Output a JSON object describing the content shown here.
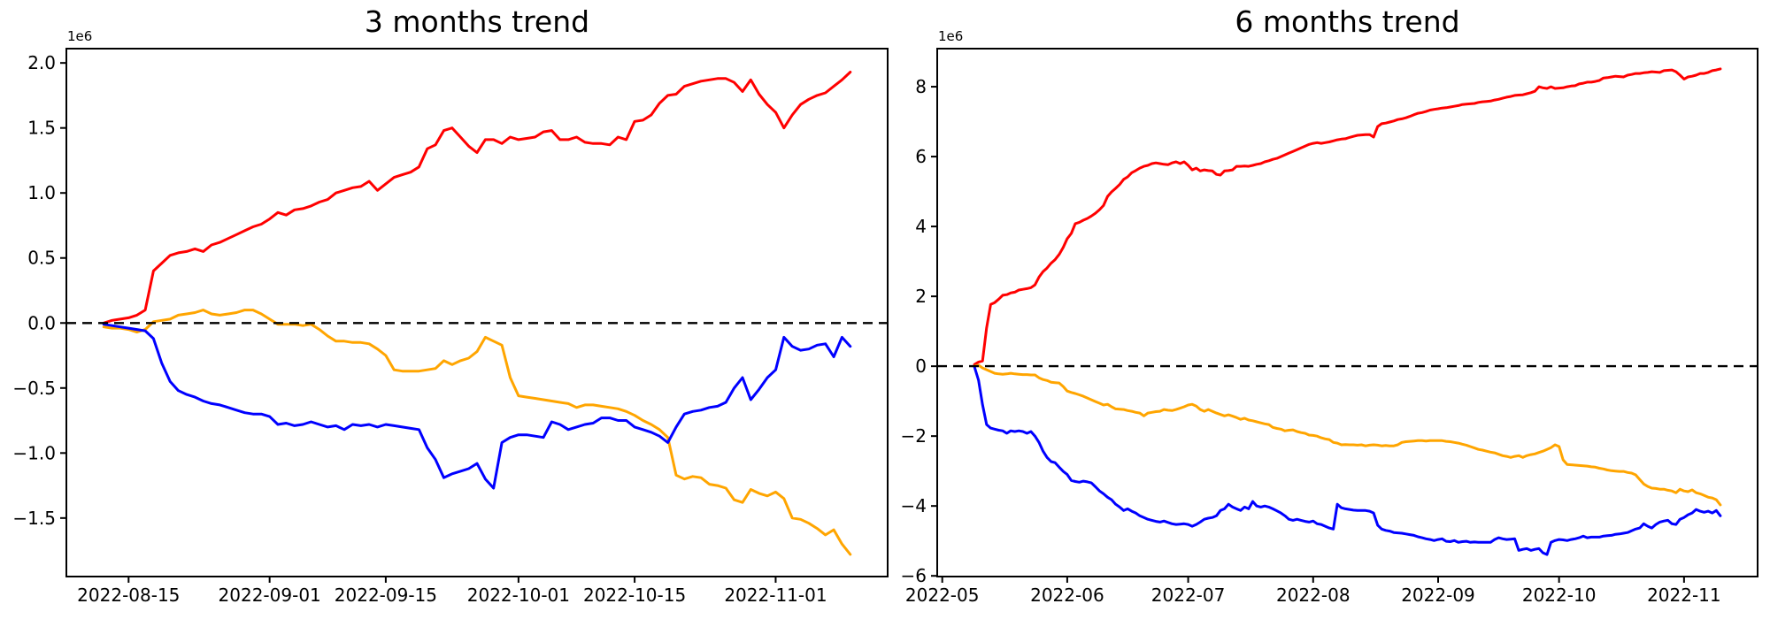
{
  "figure": {
    "background": "#ffffff",
    "axis_color": "#000000",
    "zero_line_color": "#000000"
  },
  "chart_data": [
    {
      "type": "line",
      "title": "3 months trend",
      "offset_text": "1e6",
      "xlabel": "",
      "ylabel": "",
      "grid": false,
      "legend": "none",
      "zero_line": true,
      "start_date": "2022-08-12",
      "end_date": "2022-11-10",
      "xlim": [
        -4.5,
        94.5
      ],
      "ylim": [
        -1.95,
        2.11
      ],
      "xticks": [
        {
          "day": 3,
          "label": "2022-08-15"
        },
        {
          "day": 20,
          "label": "2022-09-01"
        },
        {
          "day": 34,
          "label": "2022-09-15"
        },
        {
          "day": 50,
          "label": "2022-10-01"
        },
        {
          "day": 64,
          "label": "2022-10-15"
        },
        {
          "day": 81,
          "label": "2022-11-01"
        }
      ],
      "yticks": [
        {
          "value": -1.5,
          "label": "−1.5"
        },
        {
          "value": -1.0,
          "label": "−1.0"
        },
        {
          "value": -0.5,
          "label": "−0.5"
        },
        {
          "value": 0.0,
          "label": "0.0"
        },
        {
          "value": 0.5,
          "label": "0.5"
        },
        {
          "value": 1.0,
          "label": "1.0"
        },
        {
          "value": 1.5,
          "label": "1.5"
        },
        {
          "value": 2.0,
          "label": "2.0"
        }
      ],
      "y_unit_multiplier": 1000000,
      "series": [
        {
          "name": "red-series",
          "color": "#ff0000",
          "values": [
            0.0,
            0.02,
            0.03,
            0.04,
            0.06,
            0.1,
            0.4,
            0.46,
            0.52,
            0.54,
            0.55,
            0.57,
            0.55,
            0.6,
            0.62,
            0.65,
            0.68,
            0.71,
            0.74,
            0.76,
            0.8,
            0.85,
            0.83,
            0.87,
            0.88,
            0.9,
            0.93,
            0.95,
            1.0,
            1.02,
            1.04,
            1.05,
            1.09,
            1.02,
            1.07,
            1.12,
            1.14,
            1.16,
            1.2,
            1.34,
            1.37,
            1.48,
            1.5,
            1.43,
            1.36,
            1.31,
            1.41,
            1.41,
            1.38,
            1.43,
            1.41,
            1.42,
            1.43,
            1.47,
            1.48,
            1.41,
            1.41,
            1.43,
            1.39,
            1.38,
            1.38,
            1.37,
            1.43,
            1.41,
            1.55,
            1.56,
            1.6,
            1.69,
            1.75,
            1.76,
            1.82,
            1.84,
            1.86,
            1.87,
            1.88,
            1.88,
            1.85,
            1.78,
            1.87,
            1.76,
            1.68,
            1.62,
            1.5,
            1.6,
            1.68,
            1.72,
            1.75,
            1.77,
            1.82,
            1.87,
            1.93
          ]
        },
        {
          "name": "orange-series",
          "color": "#ffa500",
          "values": [
            -0.03,
            -0.04,
            -0.04,
            -0.05,
            -0.07,
            -0.05,
            0.01,
            0.02,
            0.03,
            0.06,
            0.07,
            0.08,
            0.1,
            0.07,
            0.06,
            0.07,
            0.08,
            0.1,
            0.1,
            0.07,
            0.03,
            -0.01,
            -0.01,
            -0.01,
            -0.02,
            -0.01,
            -0.05,
            -0.1,
            -0.14,
            -0.14,
            -0.15,
            -0.15,
            -0.16,
            -0.2,
            -0.25,
            -0.36,
            -0.37,
            -0.37,
            -0.37,
            -0.36,
            -0.35,
            -0.29,
            -0.32,
            -0.29,
            -0.27,
            -0.22,
            -0.11,
            -0.14,
            -0.17,
            -0.42,
            -0.56,
            -0.57,
            -0.58,
            -0.59,
            -0.6,
            -0.61,
            -0.62,
            -0.65,
            -0.63,
            -0.63,
            -0.64,
            -0.65,
            -0.66,
            -0.68,
            -0.71,
            -0.75,
            -0.78,
            -0.82,
            -0.88,
            -1.17,
            -1.2,
            -1.18,
            -1.19,
            -1.24,
            -1.25,
            -1.27,
            -1.36,
            -1.38,
            -1.28,
            -1.31,
            -1.33,
            -1.3,
            -1.35,
            -1.5,
            -1.51,
            -1.54,
            -1.58,
            -1.63,
            -1.59,
            -1.7,
            -1.78
          ]
        },
        {
          "name": "blue-series",
          "color": "#0000ff",
          "values": [
            -0.01,
            -0.02,
            -0.03,
            -0.04,
            -0.05,
            -0.06,
            -0.12,
            -0.31,
            -0.45,
            -0.52,
            -0.55,
            -0.57,
            -0.6,
            -0.62,
            -0.63,
            -0.65,
            -0.67,
            -0.69,
            -0.7,
            -0.7,
            -0.72,
            -0.78,
            -0.77,
            -0.79,
            -0.78,
            -0.76,
            -0.78,
            -0.8,
            -0.79,
            -0.82,
            -0.78,
            -0.79,
            -0.78,
            -0.8,
            -0.78,
            -0.79,
            -0.8,
            -0.81,
            -0.82,
            -0.96,
            -1.05,
            -1.19,
            -1.16,
            -1.14,
            -1.12,
            -1.08,
            -1.2,
            -1.27,
            -0.92,
            -0.88,
            -0.86,
            -0.86,
            -0.87,
            -0.88,
            -0.76,
            -0.78,
            -0.82,
            -0.8,
            -0.78,
            -0.77,
            -0.73,
            -0.73,
            -0.75,
            -0.75,
            -0.8,
            -0.82,
            -0.84,
            -0.87,
            -0.92,
            -0.8,
            -0.7,
            -0.68,
            -0.67,
            -0.65,
            -0.64,
            -0.61,
            -0.5,
            -0.42,
            -0.59,
            -0.51,
            -0.42,
            -0.36,
            -0.11,
            -0.18,
            -0.21,
            -0.2,
            -0.17,
            -0.16,
            -0.26,
            -0.11,
            -0.18
          ]
        }
      ]
    },
    {
      "type": "line",
      "title": "6 months trend",
      "offset_text": "1e6",
      "xlabel": "",
      "ylabel": "",
      "grid": false,
      "legend": "none",
      "zero_line": true,
      "start_date": "2022-05-09",
      "end_date": "2022-11-10",
      "xlim": [
        -9.25,
        194.25
      ],
      "ylim": [
        -6.02,
        9.09
      ],
      "xticks": [
        {
          "day": -8,
          "label": "2022-05"
        },
        {
          "day": 23,
          "label": "2022-06"
        },
        {
          "day": 53,
          "label": "2022-07"
        },
        {
          "day": 84,
          "label": "2022-08"
        },
        {
          "day": 115,
          "label": "2022-09"
        },
        {
          "day": 145,
          "label": "2022-10"
        },
        {
          "day": 176,
          "label": "2022-11"
        }
      ],
      "yticks": [
        {
          "value": -6,
          "label": "−6"
        },
        {
          "value": -4,
          "label": "−4"
        },
        {
          "value": -2,
          "label": "−2"
        },
        {
          "value": 0,
          "label": "0"
        },
        {
          "value": 2,
          "label": "2"
        },
        {
          "value": 4,
          "label": "4"
        },
        {
          "value": 6,
          "label": "6"
        },
        {
          "value": 8,
          "label": "8"
        }
      ],
      "y_unit_multiplier": 1000000,
      "series": [
        {
          "name": "red-series",
          "color": "#ff0000",
          "values": [
            0.05,
            0.12,
            0.15,
            1.1,
            1.77,
            1.82,
            1.92,
            2.03,
            2.05,
            2.1,
            2.12,
            2.18,
            2.2,
            2.22,
            2.25,
            2.33,
            2.55,
            2.71,
            2.81,
            2.95,
            3.05,
            3.2,
            3.4,
            3.65,
            3.8,
            4.08,
            4.12,
            4.18,
            4.23,
            4.3,
            4.38,
            4.48,
            4.6,
            4.86,
            4.99,
            5.09,
            5.2,
            5.35,
            5.42,
            5.54,
            5.6,
            5.67,
            5.72,
            5.75,
            5.8,
            5.82,
            5.8,
            5.78,
            5.77,
            5.82,
            5.85,
            5.8,
            5.85,
            5.75,
            5.62,
            5.67,
            5.59,
            5.62,
            5.6,
            5.59,
            5.49,
            5.47,
            5.59,
            5.6,
            5.62,
            5.72,
            5.72,
            5.73,
            5.72,
            5.75,
            5.78,
            5.8,
            5.85,
            5.88,
            5.92,
            5.95,
            6.0,
            6.05,
            6.1,
            6.15,
            6.2,
            6.25,
            6.3,
            6.35,
            6.38,
            6.4,
            6.38,
            6.4,
            6.42,
            6.45,
            6.48,
            6.5,
            6.51,
            6.55,
            6.58,
            6.61,
            6.62,
            6.63,
            6.63,
            6.56,
            6.86,
            6.94,
            6.96,
            6.99,
            7.02,
            7.06,
            7.08,
            7.11,
            7.15,
            7.2,
            7.24,
            7.26,
            7.29,
            7.33,
            7.35,
            7.37,
            7.39,
            7.4,
            7.42,
            7.44,
            7.46,
            7.49,
            7.5,
            7.51,
            7.52,
            7.55,
            7.57,
            7.58,
            7.59,
            7.62,
            7.64,
            7.67,
            7.7,
            7.72,
            7.75,
            7.76,
            7.77,
            7.8,
            7.83,
            7.87,
            8.0,
            7.97,
            7.95,
            8.0,
            7.95,
            7.96,
            7.97,
            8.0,
            8.02,
            8.03,
            8.08,
            8.1,
            8.13,
            8.13,
            8.15,
            8.18,
            8.25,
            8.26,
            8.28,
            8.3,
            8.29,
            8.28,
            8.33,
            8.35,
            8.38,
            8.38,
            8.4,
            8.41,
            8.43,
            8.42,
            8.41,
            8.46,
            8.47,
            8.48,
            8.43,
            8.33,
            8.22,
            8.28,
            8.3,
            8.33,
            8.38,
            8.38,
            8.41,
            8.46,
            8.48,
            8.51
          ]
        },
        {
          "name": "orange-series",
          "color": "#ffa500",
          "values": [
            0.0,
            0.03,
            -0.05,
            -0.1,
            -0.15,
            -0.2,
            -0.22,
            -0.23,
            -0.22,
            -0.2,
            -0.22,
            -0.23,
            -0.24,
            -0.24,
            -0.25,
            -0.25,
            -0.33,
            -0.38,
            -0.41,
            -0.46,
            -0.47,
            -0.48,
            -0.58,
            -0.71,
            -0.75,
            -0.78,
            -0.82,
            -0.86,
            -0.91,
            -0.96,
            -1.01,
            -1.06,
            -1.11,
            -1.09,
            -1.16,
            -1.22,
            -1.23,
            -1.24,
            -1.27,
            -1.29,
            -1.32,
            -1.34,
            -1.42,
            -1.34,
            -1.32,
            -1.3,
            -1.29,
            -1.24,
            -1.26,
            -1.27,
            -1.24,
            -1.2,
            -1.16,
            -1.11,
            -1.09,
            -1.14,
            -1.24,
            -1.29,
            -1.24,
            -1.29,
            -1.34,
            -1.38,
            -1.42,
            -1.39,
            -1.43,
            -1.47,
            -1.52,
            -1.49,
            -1.54,
            -1.56,
            -1.59,
            -1.62,
            -1.65,
            -1.67,
            -1.75,
            -1.78,
            -1.8,
            -1.85,
            -1.83,
            -1.82,
            -1.87,
            -1.9,
            -1.92,
            -1.97,
            -1.98,
            -2.0,
            -2.05,
            -2.08,
            -2.1,
            -2.18,
            -2.2,
            -2.25,
            -2.24,
            -2.25,
            -2.25,
            -2.26,
            -2.25,
            -2.28,
            -2.26,
            -2.25,
            -2.26,
            -2.28,
            -2.27,
            -2.28,
            -2.28,
            -2.25,
            -2.18,
            -2.16,
            -2.15,
            -2.14,
            -2.13,
            -2.13,
            -2.14,
            -2.13,
            -2.13,
            -2.13,
            -2.13,
            -2.15,
            -2.16,
            -2.18,
            -2.2,
            -2.23,
            -2.26,
            -2.3,
            -2.34,
            -2.38,
            -2.4,
            -2.43,
            -2.46,
            -2.48,
            -2.52,
            -2.56,
            -2.58,
            -2.61,
            -2.58,
            -2.56,
            -2.61,
            -2.56,
            -2.53,
            -2.51,
            -2.47,
            -2.43,
            -2.38,
            -2.33,
            -2.25,
            -2.3,
            -2.68,
            -2.81,
            -2.82,
            -2.83,
            -2.84,
            -2.85,
            -2.86,
            -2.88,
            -2.89,
            -2.92,
            -2.94,
            -2.97,
            -2.99,
            -3.0,
            -3.01,
            -3.01,
            -3.04,
            -3.06,
            -3.11,
            -3.24,
            -3.37,
            -3.44,
            -3.49,
            -3.5,
            -3.52,
            -3.52,
            -3.55,
            -3.57,
            -3.62,
            -3.52,
            -3.57,
            -3.59,
            -3.54,
            -3.62,
            -3.65,
            -3.7,
            -3.75,
            -3.77,
            -3.82,
            -3.97
          ]
        },
        {
          "name": "blue-series",
          "color": "#0000ff",
          "values": [
            -0.02,
            -0.4,
            -1.1,
            -1.67,
            -1.77,
            -1.8,
            -1.83,
            -1.85,
            -1.92,
            -1.85,
            -1.87,
            -1.85,
            -1.87,
            -1.92,
            -1.87,
            -2.0,
            -2.18,
            -2.43,
            -2.61,
            -2.73,
            -2.76,
            -2.89,
            -3.01,
            -3.1,
            -3.27,
            -3.3,
            -3.32,
            -3.29,
            -3.31,
            -3.34,
            -3.45,
            -3.57,
            -3.65,
            -3.75,
            -3.82,
            -3.95,
            -4.03,
            -4.13,
            -4.08,
            -4.15,
            -4.2,
            -4.28,
            -4.33,
            -4.38,
            -4.41,
            -4.44,
            -4.46,
            -4.43,
            -4.47,
            -4.51,
            -4.53,
            -4.52,
            -4.51,
            -4.53,
            -4.58,
            -4.53,
            -4.46,
            -4.38,
            -4.35,
            -4.33,
            -4.28,
            -4.13,
            -4.08,
            -3.95,
            -4.03,
            -4.08,
            -4.13,
            -4.03,
            -4.08,
            -3.87,
            -4.0,
            -4.03,
            -4.0,
            -4.03,
            -4.08,
            -4.14,
            -4.2,
            -4.28,
            -4.38,
            -4.41,
            -4.38,
            -4.41,
            -4.44,
            -4.46,
            -4.43,
            -4.51,
            -4.53,
            -4.58,
            -4.63,
            -4.66,
            -3.95,
            -4.05,
            -4.08,
            -4.1,
            -4.12,
            -4.13,
            -4.13,
            -4.13,
            -4.15,
            -4.2,
            -4.55,
            -4.66,
            -4.7,
            -4.72,
            -4.76,
            -4.77,
            -4.78,
            -4.8,
            -4.82,
            -4.84,
            -4.88,
            -4.91,
            -4.94,
            -4.96,
            -4.99,
            -4.96,
            -4.94,
            -5.01,
            -5.02,
            -4.99,
            -5.04,
            -5.02,
            -5.01,
            -5.04,
            -5.03,
            -5.04,
            -5.04,
            -5.04,
            -5.04,
            -4.96,
            -4.91,
            -4.94,
            -4.96,
            -4.95,
            -4.94,
            -5.27,
            -5.24,
            -5.22,
            -5.27,
            -5.24,
            -5.22,
            -5.34,
            -5.39,
            -5.04,
            -4.99,
            -4.96,
            -4.97,
            -4.99,
            -4.96,
            -4.94,
            -4.91,
            -4.86,
            -4.91,
            -4.89,
            -4.89,
            -4.89,
            -4.86,
            -4.85,
            -4.84,
            -4.81,
            -4.8,
            -4.78,
            -4.76,
            -4.71,
            -4.66,
            -4.63,
            -4.51,
            -4.58,
            -4.63,
            -4.53,
            -4.46,
            -4.43,
            -4.41,
            -4.51,
            -4.53,
            -4.38,
            -4.33,
            -4.25,
            -4.2,
            -4.1,
            -4.15,
            -4.18,
            -4.15,
            -4.2,
            -4.13,
            -4.28
          ]
        }
      ]
    }
  ]
}
